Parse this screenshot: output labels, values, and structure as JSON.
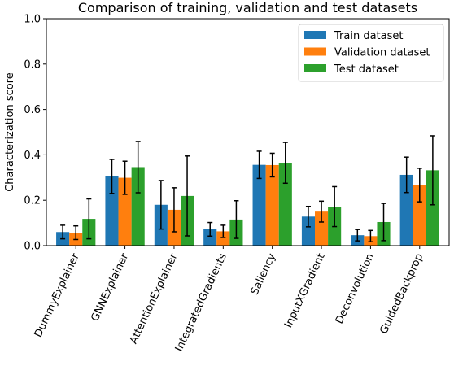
{
  "chart_data": {
    "type": "bar",
    "title": "Comparison of training, validation and test datasets",
    "xlabel": "",
    "ylabel": "Characterization score",
    "ylim": [
      0,
      1.0
    ],
    "yticks": [
      0.0,
      0.2,
      0.4,
      0.6,
      0.8,
      1.0
    ],
    "ytick_labels": [
      "0.0",
      "0.2",
      "0.4",
      "0.6",
      "0.8",
      "1.0"
    ],
    "grid": false,
    "legend_position": "top-right",
    "categories": [
      "DummyExplainer",
      "GNNExplainer",
      "AttentionExplainer",
      "IntegratedGradients",
      "Saliency",
      "InputXGradient",
      "Deconvolution",
      "GuidedBackprop"
    ],
    "series": [
      {
        "name": "Train dataset",
        "color": "#1f77b4",
        "values": [
          0.06,
          0.305,
          0.18,
          0.072,
          0.356,
          0.128,
          0.046,
          0.312
        ],
        "errors": [
          0.03,
          0.075,
          0.107,
          0.03,
          0.06,
          0.045,
          0.025,
          0.078
        ]
      },
      {
        "name": "Validation dataset",
        "color": "#ff7f0e",
        "values": [
          0.057,
          0.299,
          0.158,
          0.063,
          0.355,
          0.15,
          0.042,
          0.267
        ],
        "errors": [
          0.03,
          0.073,
          0.097,
          0.027,
          0.052,
          0.046,
          0.025,
          0.074
        ]
      },
      {
        "name": "Test dataset",
        "color": "#2ca02c",
        "values": [
          0.118,
          0.346,
          0.219,
          0.115,
          0.365,
          0.172,
          0.104,
          0.332
        ],
        "errors": [
          0.088,
          0.113,
          0.176,
          0.083,
          0.09,
          0.088,
          0.082,
          0.152
        ]
      }
    ]
  }
}
